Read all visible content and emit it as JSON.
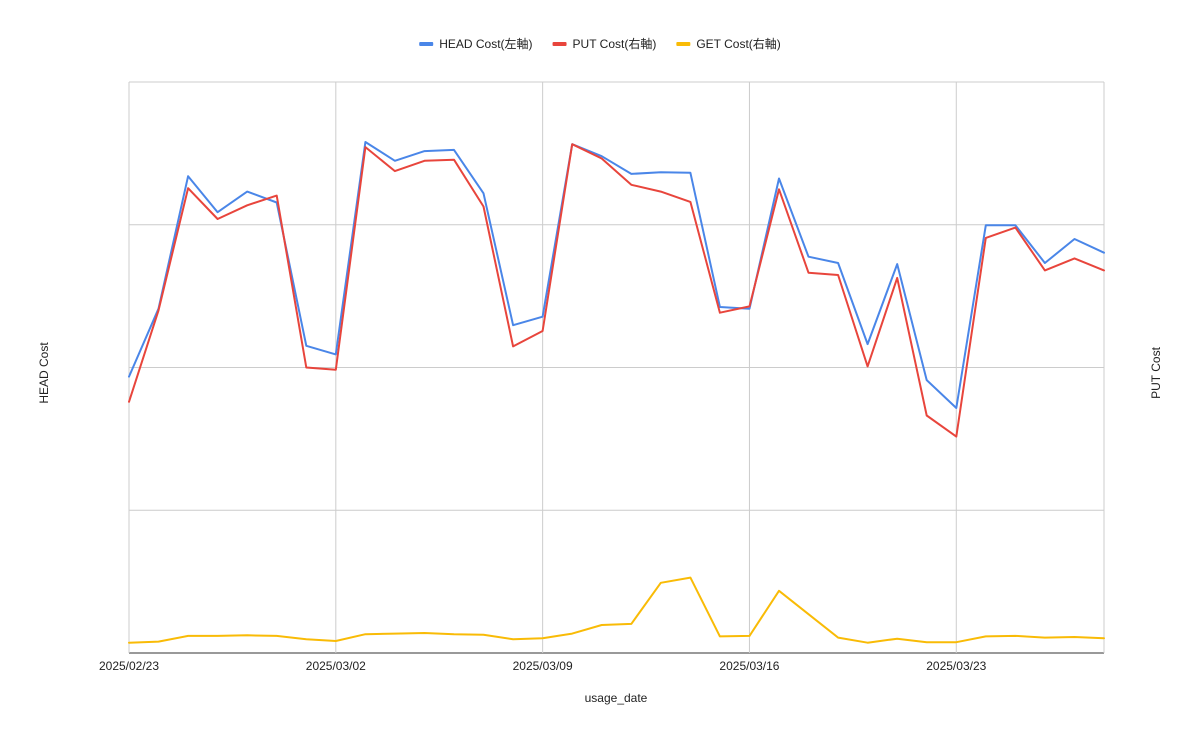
{
  "chart_data": {
    "type": "line",
    "title": "",
    "xlabel": "usage_date",
    "ylabel": "HEAD Cost",
    "ylabel_right": "PUT Cost",
    "legend_position": "top-center",
    "grid": true,
    "x": [
      "2025/02/23",
      "2025/02/24",
      "2025/02/25",
      "2025/02/26",
      "2025/02/27",
      "2025/02/28",
      "2025/03/01",
      "2025/03/02",
      "2025/03/03",
      "2025/03/04",
      "2025/03/05",
      "2025/03/06",
      "2025/03/07",
      "2025/03/08",
      "2025/03/09",
      "2025/03/10",
      "2025/03/11",
      "2025/03/12",
      "2025/03/13",
      "2025/03/14",
      "2025/03/15",
      "2025/03/16",
      "2025/03/17",
      "2025/03/18",
      "2025/03/19",
      "2025/03/20",
      "2025/03/21",
      "2025/03/22",
      "2025/03/23",
      "2025/03/24",
      "2025/03/25",
      "2025/03/26",
      "2025/03/27",
      "2025/03/28"
    ],
    "x_tick_labels": [
      "2025/02/23",
      "2025/03/02",
      "2025/03/09",
      "2025/03/16",
      "2025/03/23"
    ],
    "x_tick_indices": [
      0,
      7,
      14,
      21,
      28
    ],
    "y_gridlines": 4,
    "series": [
      {
        "name": "HEAD Cost(左軸)",
        "color": "#4a86e8",
        "values": [
          48.4,
          60.3,
          83.5,
          77.2,
          80.8,
          78.9,
          53.8,
          52.3,
          89.5,
          86.2,
          87.9,
          88.1,
          80.5,
          57.4,
          58.9,
          89.1,
          87.0,
          83.9,
          84.2,
          84.1,
          60.6,
          60.3,
          83.1,
          69.4,
          68.3,
          54.1,
          68.1,
          47.8,
          42.9,
          74.9,
          74.9,
          68.3,
          72.5,
          70.1
        ]
      },
      {
        "name": "PUT Cost(右軸)",
        "color": "#e8453c",
        "values": [
          44.0,
          60.0,
          81.4,
          76.0,
          78.4,
          80.1,
          50.0,
          49.6,
          88.6,
          84.4,
          86.2,
          86.4,
          78.2,
          53.7,
          56.4,
          89.1,
          86.6,
          82.0,
          80.8,
          79.0,
          59.6,
          60.7,
          81.2,
          66.6,
          66.2,
          50.2,
          65.7,
          41.6,
          37.9,
          72.7,
          74.5,
          67.0,
          69.1,
          67.0
        ]
      },
      {
        "name": "GET Cost(右軸)",
        "color": "#f9bb06",
        "values": [
          1.8,
          2.0,
          3.0,
          3.0,
          3.1,
          3.0,
          2.4,
          2.1,
          3.3,
          3.4,
          3.5,
          3.3,
          3.2,
          2.4,
          2.6,
          3.4,
          4.9,
          5.1,
          12.3,
          13.2,
          2.9,
          3.0,
          10.9,
          6.8,
          2.7,
          1.8,
          2.5,
          1.9,
          1.9,
          2.9,
          3.0,
          2.7,
          2.8,
          2.6
        ]
      }
    ],
    "ylim": [
      0,
      100
    ],
    "ylim_right": [
      0,
      100
    ]
  }
}
